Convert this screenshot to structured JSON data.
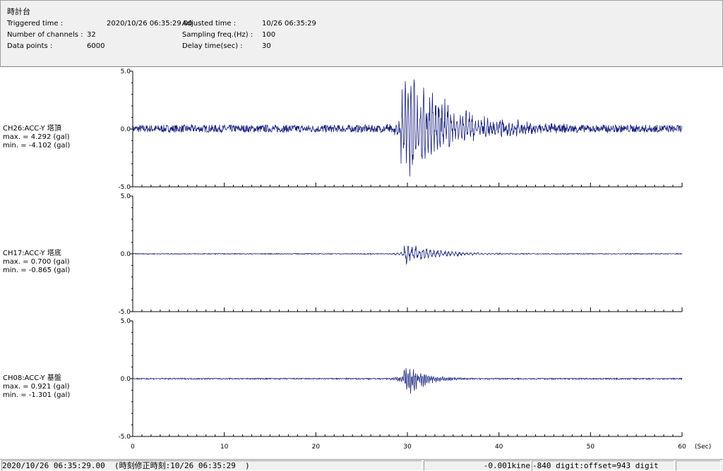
{
  "header": {
    "title": "時計台",
    "triggered_label": "Triggered time :",
    "triggered_value": "2020/10/26 06:35:29.00",
    "adjusted_label": "Adjusted time :",
    "adjusted_value": "10/26 06:35:29",
    "channels_label": "Number of channels :",
    "channels_value": "32",
    "sampling_label": "Sampling freq.(Hz) :",
    "sampling_value": "100",
    "datapoints_label": "Data points :",
    "datapoints_value": "6000",
    "delay_label": "Delay time(sec) :",
    "delay_value": "30"
  },
  "chart_data": {
    "type": "line",
    "x_unit": "(Sec)",
    "xlim": [
      0,
      60
    ],
    "x_ticks": [
      "0",
      "10",
      "20",
      "30",
      "40",
      "50",
      "60"
    ],
    "colors": {
      "trace": "#1a237e",
      "axis": "#000000"
    },
    "series": [
      {
        "name": "CH26:ACC-Y 塔頂",
        "max_text": "max. = 4.292 (gal)",
        "min_text": "min. = -4.102 (gal)",
        "max": 4.292,
        "min": -4.102,
        "ylim": [
          -5.0,
          5.0
        ],
        "y_ticks": [
          "5.0",
          "0.0",
          "-5.0"
        ],
        "onset": 29.3,
        "decay": 5.0,
        "noise": 0.08,
        "freq": 3.0
      },
      {
        "name": "CH17:ACC-Y 塔底",
        "max_text": "max. = 0.700 (gal)",
        "min_text": "min. = -0.865 (gal)",
        "max": 0.7,
        "min": -0.865,
        "ylim": [
          -5.0,
          5.0
        ],
        "y_ticks": [
          "5.0",
          "0.0",
          "-5.0"
        ],
        "onset": 29.6,
        "decay": 3.5,
        "noise": 0.05,
        "freq": 2.5
      },
      {
        "name": "CH08:ACC-Y 基盤",
        "max_text": "max. = 0.921 (gal)",
        "min_text": "min. = -1.301 (gal)",
        "max": 0.921,
        "min": -1.301,
        "ylim": [
          -5.0,
          5.0
        ],
        "y_ticks": [
          "5.0",
          "0.0",
          "-5.0"
        ],
        "onset": 29.6,
        "decay": 2.0,
        "noise": 0.04,
        "freq": 5.0
      }
    ]
  },
  "status": {
    "time": "2020/10/26 06:35:29.00  (時刻修正時刻:10/26 06:35:29  )",
    "kine": "-0.001kine",
    "digit": "-840 digit:offset=943 digit"
  }
}
